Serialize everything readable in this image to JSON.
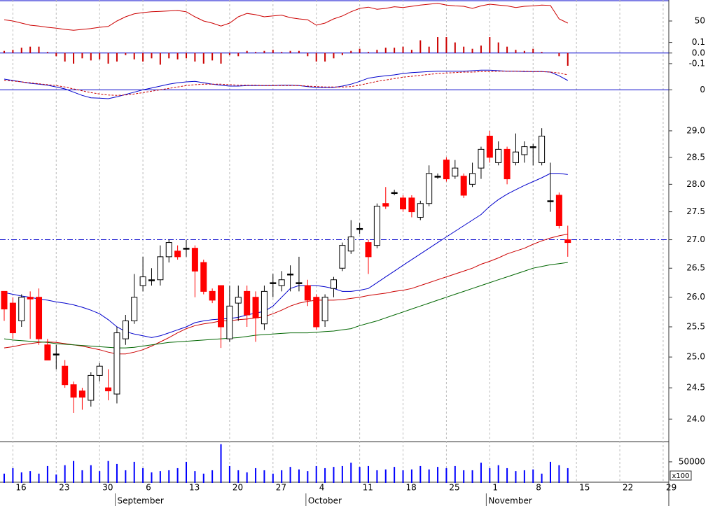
{
  "chart_data": [
    {
      "type": "candlestick",
      "log": true,
      "grid": true,
      "xlim": [
        -0.485,
        76.65
      ],
      "xticks": [
        {
          "value": 1,
          "label": "16"
        },
        {
          "value": 6,
          "label": "23"
        },
        {
          "value": 11,
          "label": "30"
        },
        {
          "value": 16,
          "label": "6"
        },
        {
          "value": 21,
          "label": "13"
        },
        {
          "value": 26,
          "label": "20"
        },
        {
          "value": 31,
          "label": "27"
        },
        {
          "value": 36,
          "label": "4"
        },
        {
          "value": 41,
          "label": "11"
        },
        {
          "value": 46,
          "label": "18"
        },
        {
          "value": 51,
          "label": "25"
        },
        {
          "value": 56,
          "label": "1"
        },
        {
          "value": 61,
          "label": "8"
        },
        {
          "value": 66,
          "label": "15"
        },
        {
          "value": 71,
          "label": "22"
        },
        {
          "value": 76,
          "label": "29"
        }
      ],
      "month_ticks": [
        {
          "value": 12.8,
          "label": "September"
        },
        {
          "value": 34.8,
          "label": "October"
        },
        {
          "value": 55.6,
          "label": "November"
        }
      ],
      "ylim": [
        23.65,
        29.7
      ],
      "yticks": [
        {
          "value": 24,
          "label": "24.0"
        },
        24.5,
        {
          "value": 25,
          "label": "25.0"
        },
        25.5,
        {
          "value": 26,
          "label": "26.0"
        },
        26.5,
        {
          "value": 27,
          "label": "27.0"
        },
        27.5,
        {
          "value": 28,
          "label": "28.0"
        },
        28.5,
        {
          "value": 29,
          "label": "29.0"
        }
      ],
      "hline": 27,
      "hline_color": "#0000cc",
      "up_color": "#000000",
      "down_color": "#ff0000",
      "open": [
        26.1,
        25.9,
        25.6,
        26.0,
        26.0,
        25.2,
        25.05,
        24.85,
        24.55,
        24.45,
        24.3,
        24.7,
        24.5,
        24.4,
        25.3,
        25.6,
        26.2,
        26.3,
        26.3,
        26.7,
        26.8,
        26.85,
        26.85,
        26.6,
        26.1,
        26.2,
        25.3,
        25.9,
        26.1,
        26.0,
        25.55,
        26.25,
        26.2,
        26.4,
        26.25,
        26.2,
        26.0,
        25.6,
        26.15,
        26.5,
        26.8,
        27.2,
        26.95,
        26.9,
        27.65,
        27.85,
        27.75,
        27.75,
        27.4,
        27.65,
        28.15,
        28.45,
        28.15,
        28.15,
        28.0,
        28.3,
        28.9,
        28.4,
        28.65,
        28.4,
        28.55,
        28.7,
        28.4,
        27.7,
        27.8,
        27.0
      ],
      "high": [
        26.1,
        26.0,
        26.05,
        26.1,
        26.15,
        25.3,
        25.2,
        24.95,
        24.6,
        24.5,
        24.75,
        24.9,
        24.8,
        25.5,
        25.7,
        26.4,
        26.7,
        26.5,
        26.9,
        27.0,
        26.9,
        27.0,
        26.9,
        26.65,
        26.15,
        26.2,
        26.2,
        26.2,
        26.2,
        26.1,
        26.2,
        26.4,
        26.45,
        26.55,
        26.7,
        26.3,
        26.05,
        26.05,
        26.35,
        26.95,
        27.35,
        27.3,
        27.0,
        27.65,
        27.95,
        27.9,
        27.8,
        27.8,
        27.7,
        28.35,
        28.2,
        28.5,
        28.45,
        28.2,
        28.4,
        28.7,
        29.0,
        28.8,
        28.7,
        28.95,
        28.8,
        28.75,
        29.05,
        28.4,
        27.85,
        27.25
      ],
      "low": [
        25.6,
        25.3,
        25.5,
        25.3,
        25.2,
        24.95,
        24.8,
        24.5,
        24.1,
        24.15,
        24.2,
        24.6,
        24.3,
        24.25,
        25.2,
        25.55,
        26.1,
        26.2,
        26.2,
        26.6,
        26.65,
        26.7,
        26.0,
        26.05,
        25.9,
        25.15,
        25.25,
        25.6,
        25.5,
        25.25,
        25.45,
        26.0,
        26.1,
        26.1,
        26.1,
        25.85,
        25.45,
        25.5,
        26.0,
        26.45,
        26.75,
        27.1,
        26.4,
        26.85,
        27.55,
        27.8,
        27.5,
        27.4,
        27.35,
        27.6,
        28.1,
        28.05,
        28.1,
        27.75,
        27.95,
        28.1,
        28.4,
        28.35,
        28.0,
        28.35,
        28.4,
        28.35,
        28.35,
        27.5,
        27.2,
        26.7
      ],
      "close": [
        25.8,
        25.4,
        26.0,
        25.97,
        25.3,
        24.95,
        25.05,
        24.55,
        24.35,
        24.35,
        24.7,
        24.85,
        24.45,
        25.4,
        25.6,
        26.0,
        26.35,
        26.3,
        26.7,
        26.95,
        26.7,
        26.85,
        26.45,
        26.1,
        25.95,
        25.5,
        25.85,
        26.0,
        25.7,
        25.65,
        26.1,
        26.25,
        26.3,
        26.4,
        26.25,
        25.95,
        25.5,
        26.0,
        26.3,
        26.9,
        27.05,
        27.2,
        26.7,
        27.6,
        27.6,
        27.85,
        27.55,
        27.5,
        27.65,
        28.2,
        28.15,
        28.1,
        28.3,
        27.8,
        28.2,
        28.65,
        28.5,
        28.65,
        28.1,
        28.6,
        28.7,
        28.7,
        28.9,
        27.7,
        27.25,
        26.95
      ],
      "series": [
        {
          "color": "#0000cc",
          "values": [
            26.08,
            26.05,
            26.02,
            26.0,
            25.97,
            25.95,
            25.92,
            25.9,
            25.87,
            25.83,
            25.78,
            25.72,
            25.62,
            25.5,
            25.42,
            25.38,
            25.35,
            25.32,
            25.35,
            25.4,
            25.45,
            25.5,
            25.57,
            25.6,
            25.62,
            25.63,
            25.64,
            25.66,
            25.7,
            25.73,
            25.76,
            25.85,
            26.0,
            26.15,
            26.2,
            26.2,
            26.2,
            26.18,
            26.15,
            26.1,
            26.1,
            26.12,
            26.15,
            26.25,
            26.35,
            26.45,
            26.55,
            26.65,
            26.75,
            26.85,
            26.95,
            27.05,
            27.15,
            27.25,
            27.35,
            27.45,
            27.6,
            27.72,
            27.82,
            27.9,
            27.98,
            28.05,
            28.12,
            28.2,
            28.2,
            28.18
          ]
        },
        {
          "color": "#cc0000",
          "values": [
            25.15,
            25.17,
            25.2,
            25.22,
            25.24,
            25.25,
            25.24,
            25.22,
            25.2,
            25.18,
            25.15,
            25.12,
            25.08,
            25.05,
            25.05,
            25.08,
            25.12,
            25.18,
            25.25,
            25.32,
            25.4,
            25.47,
            25.52,
            25.55,
            25.57,
            25.6,
            25.6,
            25.62,
            25.63,
            25.65,
            25.67,
            25.72,
            25.78,
            25.85,
            25.9,
            25.93,
            25.95,
            25.95,
            25.95,
            25.96,
            25.98,
            26.0,
            26.03,
            26.05,
            26.07,
            26.1,
            26.12,
            26.15,
            26.2,
            26.25,
            26.3,
            26.35,
            26.4,
            26.45,
            26.5,
            26.57,
            26.62,
            26.68,
            26.75,
            26.8,
            26.85,
            26.92,
            26.98,
            27.03,
            27.07,
            27.1
          ]
        },
        {
          "color": "#006600",
          "values": [
            25.3,
            25.28,
            25.27,
            25.26,
            25.25,
            25.24,
            25.22,
            25.21,
            25.2,
            25.19,
            25.18,
            25.17,
            25.16,
            25.15,
            25.15,
            25.16,
            25.18,
            25.2,
            25.22,
            25.24,
            25.25,
            25.26,
            25.27,
            25.28,
            25.29,
            25.3,
            25.31,
            25.32,
            25.34,
            25.36,
            25.37,
            25.38,
            25.39,
            25.4,
            25.4,
            25.4,
            25.41,
            25.42,
            25.43,
            25.45,
            25.47,
            25.52,
            25.56,
            25.6,
            25.65,
            25.7,
            25.75,
            25.8,
            25.85,
            25.9,
            25.95,
            26.0,
            26.05,
            26.1,
            26.15,
            26.2,
            26.25,
            26.3,
            26.35,
            26.4,
            26.45,
            26.5,
            26.53,
            26.56,
            26.58,
            26.6
          ]
        }
      ]
    },
    {
      "type": "line",
      "ylim": [
        0,
        100
      ],
      "yticks": [
        50
      ],
      "series": [
        {
          "color": "#cc0000",
          "values": [
            53,
            50,
            45,
            40,
            38,
            35,
            33,
            30,
            28,
            30,
            32,
            35,
            37,
            50,
            60,
            67,
            70,
            72,
            73,
            74,
            75,
            72,
            60,
            50,
            45,
            38,
            45,
            60,
            68,
            65,
            60,
            62,
            64,
            58,
            55,
            53,
            40,
            45,
            55,
            62,
            72,
            80,
            83,
            78,
            80,
            84,
            82,
            85,
            88,
            90,
            92,
            88,
            86,
            85,
            80,
            86,
            90,
            88,
            86,
            82,
            85,
            86,
            88,
            87,
            55,
            45
          ]
        }
      ]
    },
    {
      "type": "bar",
      "ylim": [
        -0.16,
        0.17
      ],
      "yticks": [
        0.1,
        {
          "value": 0,
          "label": "0.0"
        },
        -0.1
      ],
      "zero_line": "#0000cc",
      "color": "#cc0000",
      "values": [
        0.02,
        0.03,
        0.05,
        0.06,
        0.06,
        0.01,
        -0.03,
        -0.08,
        -0.1,
        -0.05,
        -0.07,
        -0.06,
        -0.1,
        -0.08,
        -0.02,
        -0.06,
        -0.08,
        -0.05,
        -0.11,
        -0.05,
        -0.06,
        -0.05,
        -0.08,
        -0.1,
        -0.07,
        -0.1,
        -0.02,
        -0.03,
        0.02,
        0.01,
        0.02,
        0.03,
        0.01,
        0.02,
        0.02,
        -0.03,
        -0.08,
        -0.08,
        -0.05,
        -0.02,
        0.02,
        0.04,
        0.01,
        0.03,
        0.05,
        0.05,
        0.06,
        0.03,
        0.12,
        0.06,
        0.15,
        0.15,
        0.1,
        0.06,
        0.04,
        0.07,
        0.15,
        0.1,
        0.06,
        0.03,
        0.02,
        0.04,
        0.01,
        0.0,
        -0.03,
        -0.12
      ]
    },
    {
      "type": "line",
      "ylim": [
        -0.25,
        0.65
      ],
      "yticks": [
        0
      ],
      "zero_line": "#0000cc",
      "series": [
        {
          "color": "#0000cc",
          "values": [
            0.23,
            0.2,
            0.17,
            0.14,
            0.12,
            0.1,
            0.06,
            0.02,
            -0.05,
            -0.12,
            -0.17,
            -0.18,
            -0.19,
            -0.15,
            -0.1,
            -0.05,
            0.0,
            0.04,
            0.08,
            0.12,
            0.15,
            0.17,
            0.18,
            0.15,
            0.12,
            0.1,
            0.08,
            0.08,
            0.09,
            0.09,
            0.09,
            0.09,
            0.1,
            0.1,
            0.09,
            0.07,
            0.05,
            0.05,
            0.05,
            0.08,
            0.12,
            0.18,
            0.25,
            0.28,
            0.3,
            0.32,
            0.35,
            0.37,
            0.38,
            0.39,
            0.4,
            0.4,
            0.4,
            0.4,
            0.41,
            0.42,
            0.42,
            0.41,
            0.4,
            0.4,
            0.39,
            0.39,
            0.39,
            0.38,
            0.3,
            0.2
          ]
        },
        {
          "color": "#cc0000",
          "dashed": true,
          "values": [
            0.2,
            0.19,
            0.17,
            0.15,
            0.13,
            0.11,
            0.09,
            0.06,
            0.02,
            -0.02,
            -0.06,
            -0.09,
            -0.11,
            -0.12,
            -0.11,
            -0.09,
            -0.06,
            -0.03,
            0.0,
            0.03,
            0.06,
            0.09,
            0.11,
            0.12,
            0.12,
            0.12,
            0.11,
            0.1,
            0.1,
            0.1,
            0.09,
            0.09,
            0.09,
            0.09,
            0.09,
            0.08,
            0.07,
            0.06,
            0.06,
            0.06,
            0.07,
            0.1,
            0.14,
            0.18,
            0.21,
            0.24,
            0.27,
            0.29,
            0.31,
            0.33,
            0.35,
            0.36,
            0.37,
            0.38,
            0.38,
            0.39,
            0.39,
            0.4,
            0.4,
            0.4,
            0.4,
            0.39,
            0.39,
            0.38,
            0.36,
            0.32
          ]
        }
      ]
    },
    {
      "type": "bar",
      "ylim": [
        0,
        98000
      ],
      "yticks": [
        50000
      ],
      "unit_label": "x100",
      "color": "#0000ff",
      "values": [
        22000,
        35000,
        25000,
        28000,
        22000,
        40000,
        20000,
        42000,
        52000,
        30000,
        42000,
        28000,
        52000,
        45000,
        30000,
        50000,
        35000,
        25000,
        28000,
        30000,
        35000,
        50000,
        28000,
        22000,
        30000,
        92000,
        40000,
        30000,
        25000,
        35000,
        30000,
        22000,
        30000,
        38000,
        32000,
        28000,
        40000,
        35000,
        38000,
        40000,
        48000,
        38000,
        40000,
        30000,
        32000,
        38000,
        30000,
        32000,
        40000,
        32000,
        38000,
        35000,
        40000,
        30000,
        30000,
        48000,
        35000,
        42000,
        35000,
        28000,
        30000,
        32000,
        22000,
        50000,
        42000,
        35000
      ]
    }
  ]
}
